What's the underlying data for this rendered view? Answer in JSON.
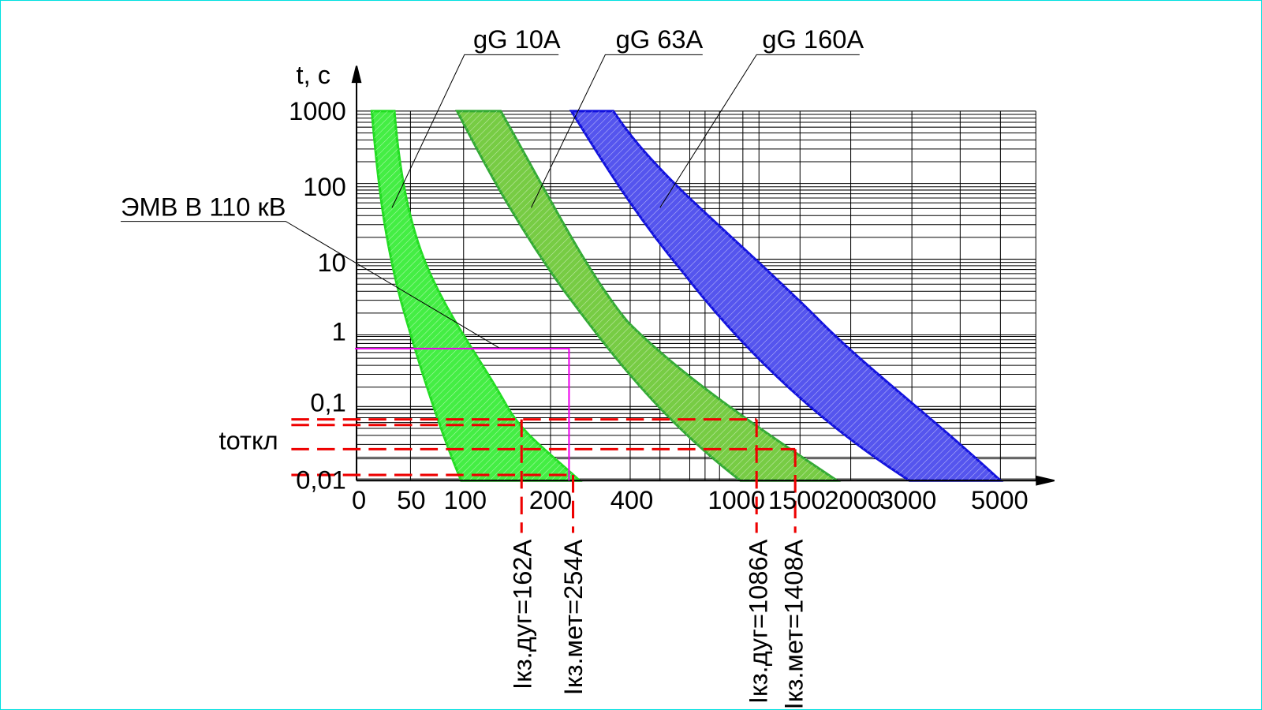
{
  "curves": [
    {
      "label": "gG 10A"
    },
    {
      "label": "gG 63A"
    },
    {
      "label": "gG 160A"
    }
  ],
  "y_axis": {
    "label": "t, c",
    "ticks": [
      "1000",
      "100",
      "10",
      "1",
      "0,1",
      "0,01"
    ]
  },
  "x_axis": {
    "ticks": [
      "0",
      "50",
      "100",
      "200",
      "400",
      "1000",
      "1500",
      "2000",
      "3000",
      "5000"
    ]
  },
  "breaker_label": "ЭМВ В 110 кВ",
  "t_label": "tоткл",
  "currents": [
    "Iкз.дуг=162А",
    "Iкз.мет=254А",
    "Iкз.дуг=1086А",
    "Iкз.мет=1408А"
  ]
}
